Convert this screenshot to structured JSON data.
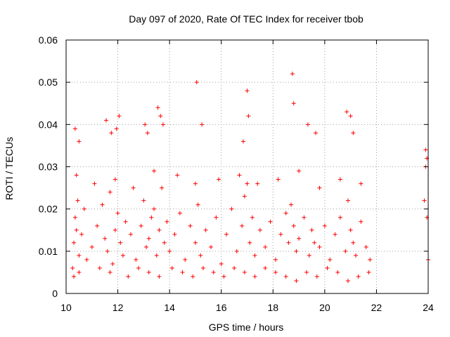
{
  "chart_data": {
    "type": "scatter",
    "title": "Day 097 of 2020, Rate Of TEC Index for receiver tbob",
    "xlabel": "GPS time / hours",
    "ylabel": "ROTI / TECUs",
    "xlim": [
      10,
      24
    ],
    "ylim": [
      0,
      0.06
    ],
    "x_ticks": [
      "10",
      "12",
      "14",
      "16",
      "18",
      "20",
      "22",
      "24"
    ],
    "y_ticks": [
      "0",
      "0.01",
      "0.02",
      "0.03",
      "0.04",
      "0.05",
      "0.06"
    ],
    "grid": true,
    "legend": "none",
    "marker": "plus",
    "color": "#ff0000",
    "x": [
      10.25,
      10.3,
      10.35,
      10.4,
      10.45,
      10.5,
      10.6,
      10.7,
      10.8,
      11.0,
      11.2,
      11.4,
      11.5,
      11.6,
      11.7,
      11.8,
      11.9,
      12.0,
      12.1,
      12.2,
      12.3,
      12.5,
      12.7,
      12.9,
      13.0,
      13.1,
      13.2,
      13.3,
      13.4,
      13.5,
      13.6,
      13.7,
      13.8,
      13.9,
      14.0,
      14.2,
      14.4,
      14.6,
      14.8,
      15.0,
      15.1,
      15.2,
      15.4,
      15.6,
      15.8,
      16.0,
      16.2,
      16.4,
      16.6,
      16.8,
      16.9,
      17.0,
      17.1,
      17.2,
      17.3,
      17.5,
      17.7,
      17.9,
      18.1,
      18.3,
      18.5,
      18.6,
      18.7,
      18.8,
      18.9,
      19.0,
      19.2,
      19.4,
      19.5,
      19.6,
      19.8,
      20.0,
      20.2,
      20.4,
      20.6,
      20.8,
      20.9,
      21.0,
      21.1,
      21.2,
      21.4,
      21.6,
      21.75,
      23.85,
      23.9,
      23.95,
      24.0,
      10.3,
      10.5,
      11.3,
      11.7,
      12.4,
      12.8,
      13.2,
      13.6,
      14.1,
      14.5,
      14.9,
      15.3,
      15.7,
      16.1,
      16.5,
      16.9,
      17.3,
      17.7,
      18.1,
      18.5,
      18.9,
      19.3,
      19.7,
      20.1,
      20.5,
      20.9,
      21.3,
      21.7,
      10.4,
      11.1,
      11.9,
      12.6,
      13.4,
      14.3,
      15.0,
      15.9,
      16.7,
      17.4,
      18.2,
      19.0,
      19.8,
      20.6,
      21.4,
      23.95,
      10.35,
      10.5,
      11.55,
      11.75,
      11.95,
      12.05,
      13.05,
      13.15,
      13.55,
      13.65,
      13.75,
      15.05,
      15.25,
      16.85,
      17.0,
      17.05,
      18.75,
      18.8,
      19.35,
      19.65,
      20.85,
      21.0,
      21.1,
      23.9
    ],
    "y": [
      0.006,
      0.012,
      0.018,
      0.015,
      0.022,
      0.009,
      0.014,
      0.02,
      0.008,
      0.011,
      0.016,
      0.021,
      0.013,
      0.01,
      0.024,
      0.007,
      0.015,
      0.019,
      0.012,
      0.009,
      0.017,
      0.014,
      0.008,
      0.016,
      0.022,
      0.011,
      0.013,
      0.018,
      0.02,
      0.009,
      0.015,
      0.025,
      0.012,
      0.017,
      0.01,
      0.014,
      0.019,
      0.008,
      0.016,
      0.012,
      0.021,
      0.009,
      0.015,
      0.011,
      0.018,
      0.007,
      0.014,
      0.02,
      0.01,
      0.016,
      0.023,
      0.026,
      0.012,
      0.018,
      0.009,
      0.015,
      0.011,
      0.017,
      0.008,
      0.014,
      0.019,
      0.012,
      0.021,
      0.016,
      0.01,
      0.013,
      0.018,
      0.009,
      0.015,
      0.012,
      0.011,
      0.016,
      0.008,
      0.014,
      0.018,
      0.01,
      0.022,
      0.015,
      0.012,
      0.009,
      0.017,
      0.011,
      0.008,
      0.022,
      0.03,
      0.018,
      0.008,
      0.004,
      0.005,
      0.006,
      0.005,
      0.004,
      0.006,
      0.005,
      0.004,
      0.006,
      0.005,
      0.004,
      0.006,
      0.005,
      0.004,
      0.006,
      0.005,
      0.004,
      0.006,
      0.005,
      0.004,
      0.003,
      0.005,
      0.004,
      0.006,
      0.005,
      0.003,
      0.004,
      0.005,
      0.028,
      0.026,
      0.027,
      0.025,
      0.029,
      0.028,
      0.026,
      0.027,
      0.028,
      0.026,
      0.027,
      0.029,
      0.025,
      0.027,
      0.026,
      0.032,
      0.039,
      0.036,
      0.041,
      0.038,
      0.039,
      0.042,
      0.04,
      0.038,
      0.044,
      0.042,
      0.04,
      0.05,
      0.04,
      0.036,
      0.048,
      0.042,
      0.052,
      0.045,
      0.04,
      0.038,
      0.043,
      0.042,
      0.038,
      0.034
    ]
  }
}
